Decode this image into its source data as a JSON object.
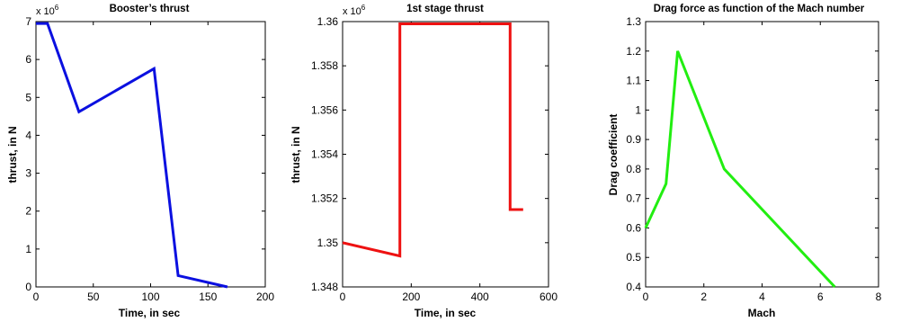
{
  "chart_data": [
    {
      "id": "c0",
      "type": "line",
      "title": "Booster’s thrust",
      "xlabel": "Time, in sec",
      "ylabel": "thrust, in N",
      "exponent_base": "x 10",
      "exponent_power": "6",
      "xlim": [
        0,
        200
      ],
      "ylim": [
        0,
        7
      ],
      "xticks": [
        0,
        50,
        100,
        150,
        200
      ],
      "yticks": [
        0,
        1,
        2,
        3,
        4,
        5,
        6,
        7
      ],
      "xtick_labels": [
        "0",
        "50",
        "100",
        "150",
        "200"
      ],
      "ytick_labels": [
        "0",
        "1",
        "2",
        "3",
        "4",
        "5",
        "6",
        "7"
      ],
      "grid": false,
      "color": "#0b10e0",
      "x": [
        0,
        10,
        37.5,
        103,
        124,
        167
      ],
      "y": [
        6.95,
        6.95,
        4.62,
        5.76,
        0.3,
        0.0
      ]
    },
    {
      "id": "c1",
      "type": "line",
      "title": "1st stage thrust",
      "xlabel": "Time, in sec",
      "ylabel": "thrust, in N",
      "exponent_base": "x 10",
      "exponent_power": "6",
      "xlim": [
        0,
        600
      ],
      "ylim": [
        1.348,
        1.36
      ],
      "xticks": [
        0,
        200,
        400,
        600
      ],
      "yticks": [
        1.348,
        1.35,
        1.352,
        1.354,
        1.356,
        1.358,
        1.36
      ],
      "xtick_labels": [
        "0",
        "200",
        "400",
        "600"
      ],
      "ytick_labels": [
        "1.348",
        "1.35",
        "1.352",
        "1.354",
        "1.356",
        "1.358",
        "1.36"
      ],
      "grid": false,
      "color": "#ee1111",
      "x": [
        0,
        167,
        167,
        488,
        488,
        526
      ],
      "y": [
        1.35,
        1.3494,
        1.3599,
        1.3599,
        1.3515,
        1.3515
      ]
    },
    {
      "id": "c2",
      "type": "line",
      "title": "Drag force as function of the Mach number",
      "xlabel": "Mach",
      "ylabel": "Drag coefficient",
      "xlim": [
        0,
        8
      ],
      "ylim": [
        0.4,
        1.3
      ],
      "xticks": [
        0,
        2,
        4,
        6,
        8
      ],
      "yticks": [
        0.4,
        0.5,
        0.6,
        0.7,
        0.8,
        0.9,
        1.0,
        1.1,
        1.2,
        1.3
      ],
      "xtick_labels": [
        "0",
        "2",
        "4",
        "6",
        "8"
      ],
      "ytick_labels": [
        "0.4",
        "0.5",
        "0.6",
        "0.7",
        "0.8",
        "0.9",
        "1",
        "1.1",
        "1.2",
        "1.3"
      ],
      "grid": false,
      "color": "#22ee11",
      "x": [
        0,
        0.7,
        1.1,
        2.7,
        6.5
      ],
      "y": [
        0.6,
        0.75,
        1.2,
        0.8,
        0.4
      ]
    }
  ]
}
